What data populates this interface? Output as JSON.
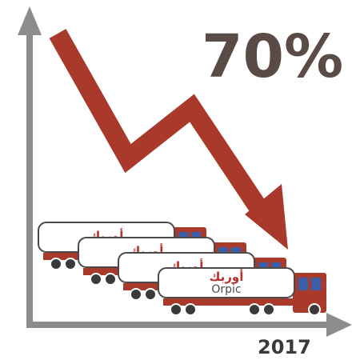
{
  "headline": "70%",
  "year_label": "2017",
  "trucks": [
    {
      "label_ar": "أوربك"
    },
    {
      "label_ar": "أوربك"
    },
    {
      "label_ar": "أوربك"
    },
    {
      "label_ar": "أوربك",
      "label_en": "Orpic"
    }
  ]
}
